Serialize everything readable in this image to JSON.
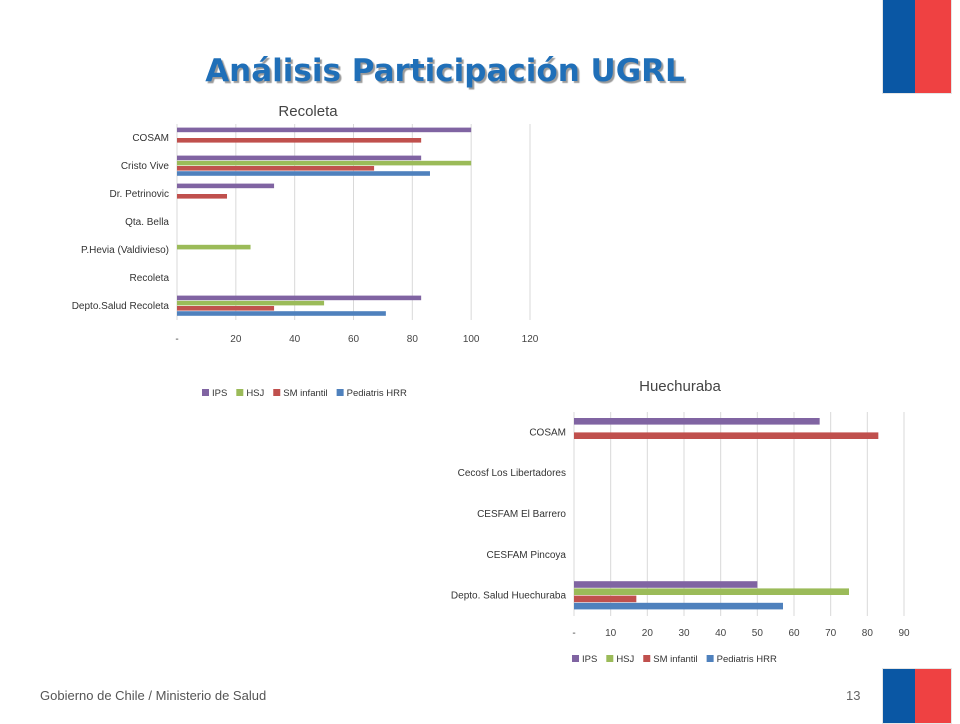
{
  "slide": {
    "title": "Análisis Participación  UGRL",
    "footer": "Gobierno de Chile / Ministerio de Salud",
    "page_number": "13"
  },
  "colors": {
    "title": "#1f6fb8",
    "flag_blue": "#0a57a4",
    "flag_red": "#ef4142"
  },
  "chart_data": [
    {
      "type": "bar",
      "orientation": "horizontal",
      "title": "Recoleta",
      "categories": [
        "COSAM",
        "Cristo Vive",
        "Dr. Petrinovic",
        "Qta. Bella",
        "P.Hevia (Valdivieso)",
        "Recoleta",
        "Depto.Salud Recoleta"
      ],
      "series": [
        {
          "name": "IPS",
          "color": "#8064a2",
          "values": [
            100,
            83,
            33,
            null,
            null,
            null,
            83
          ]
        },
        {
          "name": "HSJ",
          "color": "#9bbb59",
          "values": [
            null,
            100,
            null,
            null,
            25,
            null,
            50
          ]
        },
        {
          "name": "SM infantil",
          "color": "#c0504d",
          "values": [
            83,
            67,
            17,
            null,
            null,
            null,
            33
          ]
        },
        {
          "name": "Pediatris HRR",
          "color": "#4f81bd",
          "values": [
            null,
            86,
            null,
            null,
            null,
            null,
            71
          ]
        }
      ],
      "xlim": [
        0,
        120
      ],
      "x_ticks": [
        "-",
        "20",
        "40",
        "60",
        "80",
        "100",
        "120"
      ],
      "grid": true,
      "legend_position": "bottom"
    },
    {
      "type": "bar",
      "orientation": "horizontal",
      "title": "Huechuraba",
      "categories": [
        "COSAM",
        "Cecosf Los Libertadores",
        "CESFAM El Barrero",
        "CESFAM Pincoya",
        "Depto. Salud Huechuraba"
      ],
      "series": [
        {
          "name": "IPS",
          "color": "#8064a2",
          "values": [
            67,
            null,
            null,
            null,
            50
          ]
        },
        {
          "name": "HSJ",
          "color": "#9bbb59",
          "values": [
            null,
            null,
            null,
            null,
            75
          ]
        },
        {
          "name": "SM infantil",
          "color": "#c0504d",
          "values": [
            83,
            null,
            null,
            null,
            17
          ]
        },
        {
          "name": "Pediatris HRR",
          "color": "#4f81bd",
          "values": [
            null,
            null,
            null,
            null,
            57
          ]
        }
      ],
      "xlim": [
        0,
        90
      ],
      "x_ticks": [
        "-",
        "10",
        "20",
        "30",
        "40",
        "50",
        "60",
        "70",
        "80",
        "90"
      ],
      "grid": true,
      "legend_position": "bottom"
    }
  ]
}
